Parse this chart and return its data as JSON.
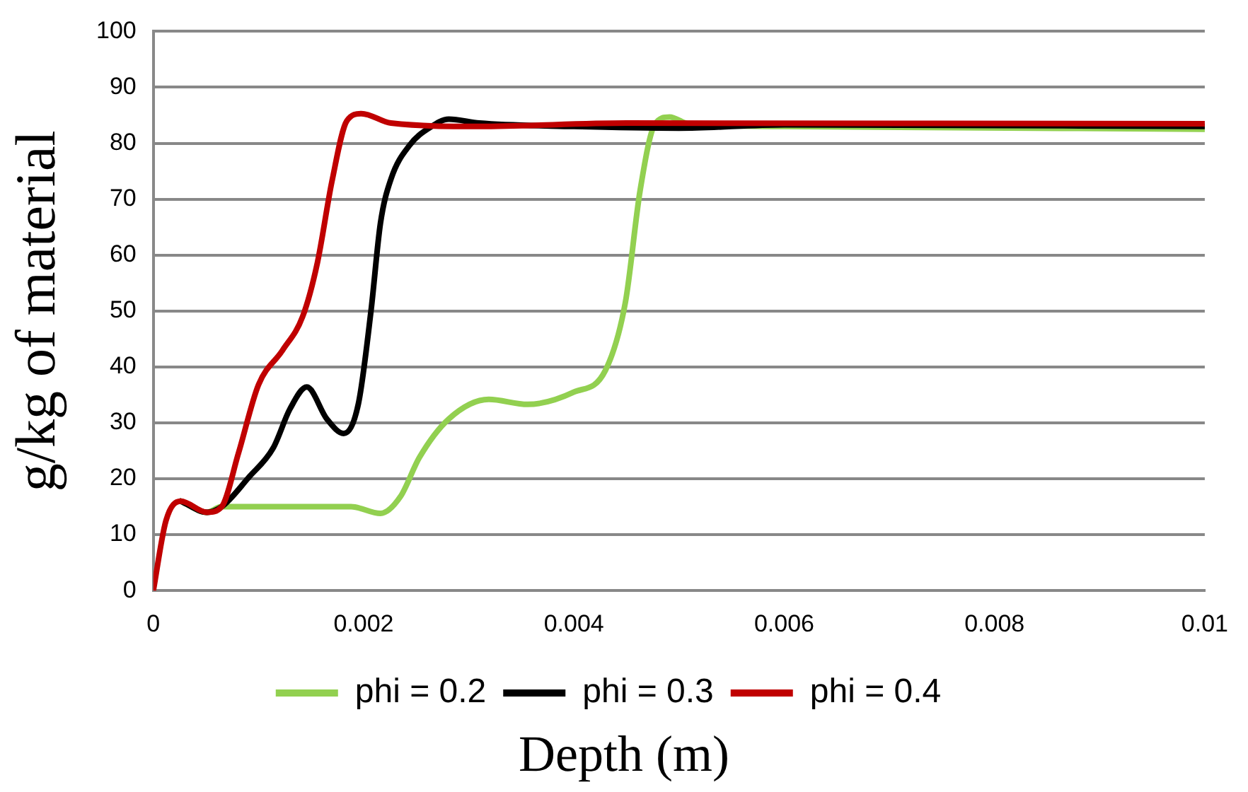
{
  "chart_data": {
    "type": "line",
    "xlabel": "Depth (m)",
    "ylabel": "g/kg of material",
    "xlim": [
      0,
      0.01
    ],
    "xticks": [
      0,
      0.002,
      0.004,
      0.006,
      0.008,
      0.01
    ],
    "ylim": [
      0,
      100
    ],
    "yticks": [
      0,
      10,
      20,
      30,
      40,
      50,
      60,
      70,
      80,
      90,
      100
    ],
    "grid": "y",
    "legend": "bottom",
    "marker": "none",
    "line_style": "solid",
    "series": [
      {
        "name": "phi = 0.2",
        "color": "#92d050",
        "x": [
          0.00026,
          0.00051,
          0.00065,
          0.00188,
          0.00216,
          0.00235,
          0.00253,
          0.00281,
          0.00319,
          0.00356,
          0.004,
          0.0043,
          0.00449,
          0.00463,
          0.00477,
          0.00491,
          0.0051,
          0.006,
          0.01
        ],
        "values": [
          16,
          14,
          15,
          15,
          13.8,
          16.8,
          23.8,
          30.7,
          34.2,
          33.3,
          35.5,
          39.4,
          51.6,
          71.6,
          83.4,
          84.7,
          83.4,
          83,
          82.5
        ]
      },
      {
        "name": "phi = 0.3",
        "color": "#000000",
        "x": [
          0.00026,
          0.00051,
          0.00065,
          0.00091,
          0.00114,
          0.0013,
          0.00146,
          0.00165,
          0.00181,
          0.00195,
          0.00207,
          0.00216,
          0.00226,
          0.00244,
          0.00263,
          0.00281,
          0.0031,
          0.004,
          0.005,
          0.006,
          0.01
        ],
        "values": [
          16,
          14,
          15,
          20.3,
          25.5,
          32.5,
          36.4,
          30.7,
          28.1,
          33.4,
          50,
          65.7,
          73.6,
          79.7,
          82.8,
          84.3,
          83.6,
          83,
          82.7,
          83.3,
          83
        ]
      },
      {
        "name": "phi = 0.4",
        "color": "#c00000",
        "x": [
          0,
          0.00012,
          0.00026,
          0.00051,
          0.00065,
          0.00081,
          0.001,
          0.00123,
          0.00142,
          0.00156,
          0.0017,
          0.00184,
          0.00198,
          0.00226,
          0.0031,
          0.0045,
          0.01
        ],
        "values": [
          0,
          12.5,
          16,
          14,
          15,
          24.6,
          36.8,
          43,
          49,
          58.6,
          73.3,
          84,
          85.3,
          83.6,
          83,
          83.6,
          83.5
        ]
      }
    ]
  }
}
